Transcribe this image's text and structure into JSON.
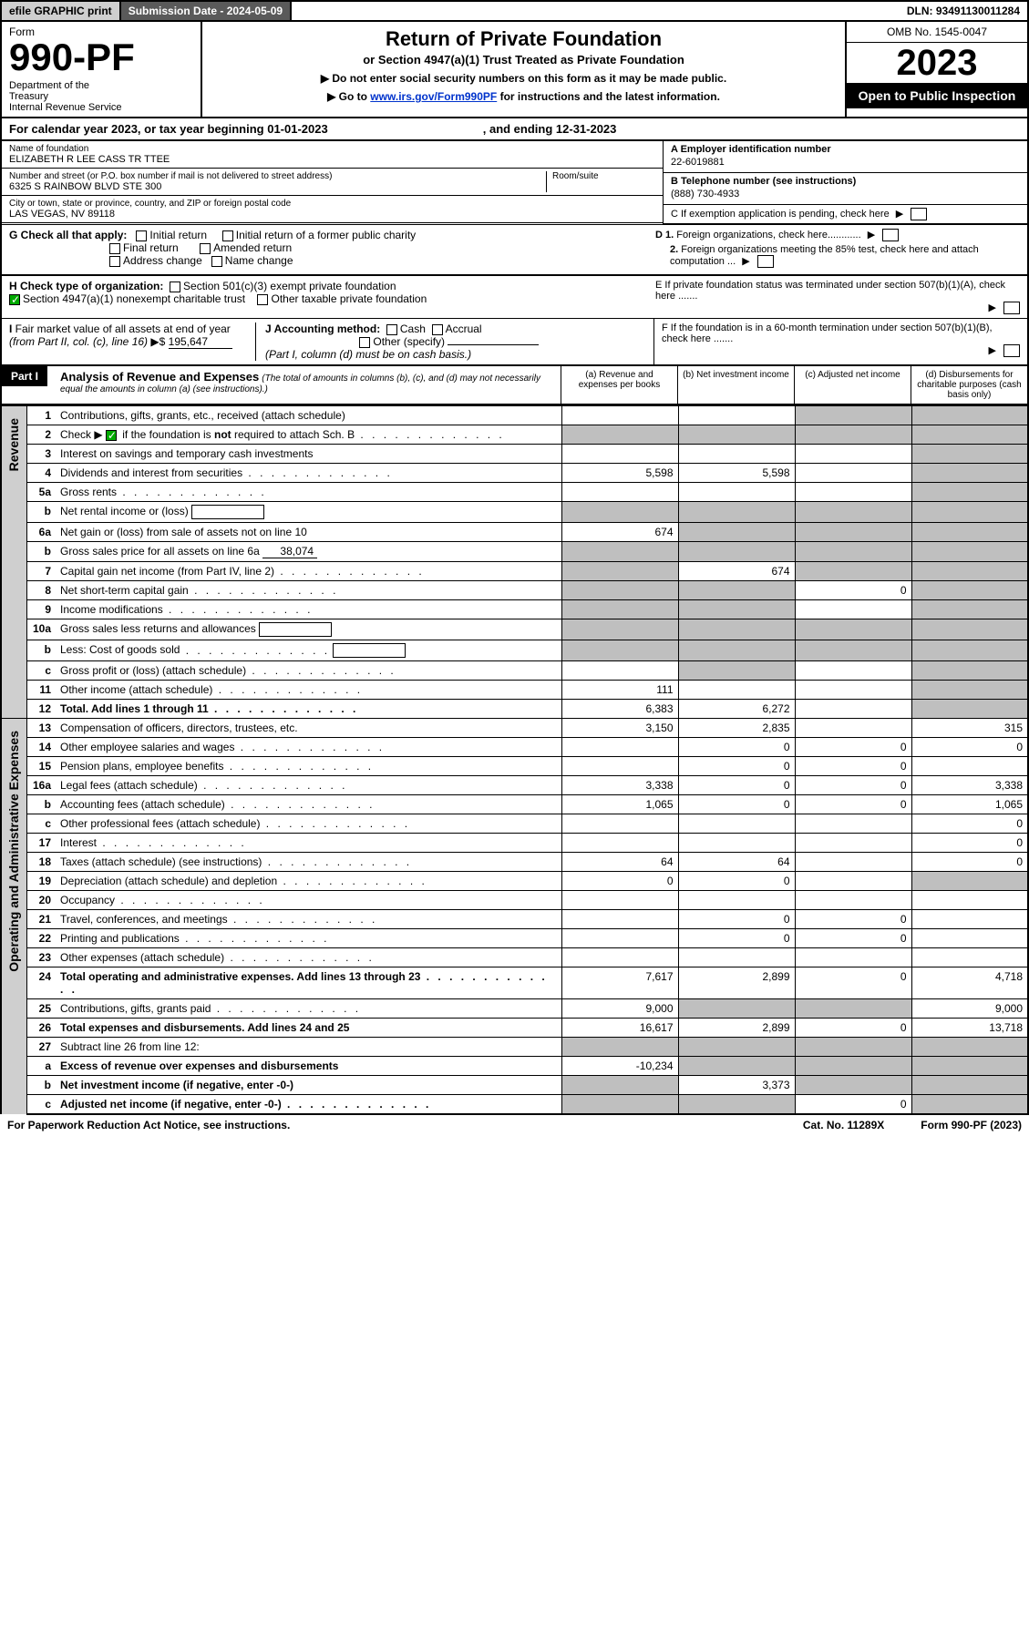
{
  "topbar": {
    "efile": "efile GRAPHIC print",
    "submission": "Submission Date - 2024-05-09",
    "dln": "DLN: 93491130011284"
  },
  "header": {
    "form_word": "Form",
    "form_num": "990-PF",
    "dept": "Department of the Treasury\nInternal Revenue Service",
    "title": "Return of Private Foundation",
    "subtitle": "or Section 4947(a)(1) Trust Treated as Private Foundation",
    "note1": "▶ Do not enter social security numbers on this form as it may be made public.",
    "note2_pre": "▶ Go to ",
    "note2_link": "www.irs.gov/Form990PF",
    "note2_post": " for instructions and the latest information.",
    "omb": "OMB No. 1545-0047",
    "year": "2023",
    "open": "Open to Public Inspection"
  },
  "calyear": {
    "text": "For calendar year 2023, or tax year beginning 01-01-2023",
    "ending": ", and ending 12-31-2023"
  },
  "info": {
    "name_label": "Name of foundation",
    "name": "ELIZABETH R LEE CASS TR TTEE",
    "addr_label": "Number and street (or P.O. box number if mail is not delivered to street address)",
    "addr": "6325 S RAINBOW BLVD STE 300",
    "room_label": "Room/suite",
    "city_label": "City or town, state or province, country, and ZIP or foreign postal code",
    "city": "LAS VEGAS, NV  89118",
    "a_label": "A Employer identification number",
    "ein": "22-6019881",
    "b_label": "B Telephone number (see instructions)",
    "phone": "(888) 730-4933",
    "c_label": "C If exemption application is pending, check here"
  },
  "g": {
    "label": "G Check all that apply:",
    "initial": "Initial return",
    "initial_former": "Initial return of a former public charity",
    "final": "Final return",
    "amended": "Amended return",
    "address": "Address change",
    "name_change": "Name change",
    "d1": "D 1. Foreign organizations, check here............",
    "d2": "2. Foreign organizations meeting the 85% test, check here and attach computation ...",
    "e": "E  If private foundation status was terminated under section 507(b)(1)(A), check here ......."
  },
  "h": {
    "label": "H Check type of organization:",
    "sec501": "Section 501(c)(3) exempt private foundation",
    "sec4947": "Section 4947(a)(1) nonexempt charitable trust",
    "other_taxable": "Other taxable private foundation"
  },
  "i": {
    "label": "I Fair market value of all assets at end of year (from Part II, col. (c), line 16)",
    "arrow": "▶$",
    "value": "195,647"
  },
  "j": {
    "label": "J Accounting method:",
    "cash": "Cash",
    "accrual": "Accrual",
    "other": "Other (specify)",
    "note": "(Part I, column (d) must be on cash basis.)"
  },
  "f": {
    "label": "F  If the foundation is in a 60-month termination under section 507(b)(1)(B), check here ......."
  },
  "part1": {
    "label": "Part I",
    "title": "Analysis of Revenue and Expenses",
    "subtitle": "(The total of amounts in columns (b), (c), and (d) may not necessarily equal the amounts in column (a) (see instructions).)",
    "col_a": "(a)   Revenue and expenses per books",
    "col_b": "(b)   Net investment income",
    "col_c": "(c)   Adjusted net income",
    "col_d": "(d)   Disbursements for charitable purposes (cash basis only)"
  },
  "vert": {
    "revenue": "Revenue",
    "expenses": "Operating and Administrative Expenses"
  },
  "rows": [
    {
      "n": "1",
      "desc": "Contributions, gifts, grants, etc., received (attach schedule)",
      "a": "",
      "b": "",
      "c": "g",
      "d": "g"
    },
    {
      "n": "2",
      "desc": "Check ▶ [x] if the foundation is not required to attach Sch. B",
      "dots": true,
      "a": "g",
      "b": "g",
      "c": "g",
      "d": "g",
      "checkbox": true
    },
    {
      "n": "3",
      "desc": "Interest on savings and temporary cash investments",
      "a": "",
      "b": "",
      "c": "",
      "d": "g"
    },
    {
      "n": "4",
      "desc": "Dividends and interest from securities",
      "dots": true,
      "a": "5,598",
      "b": "5,598",
      "c": "",
      "d": "g"
    },
    {
      "n": "5a",
      "desc": "Gross rents",
      "dots": true,
      "a": "",
      "b": "",
      "c": "",
      "d": "g"
    },
    {
      "n": "b",
      "desc": "Net rental income or (loss)",
      "box": true,
      "a": "g",
      "b": "g",
      "c": "g",
      "d": "g"
    },
    {
      "n": "6a",
      "desc": "Net gain or (loss) from sale of assets not on line 10",
      "a": "674",
      "b": "g",
      "c": "g",
      "d": "g"
    },
    {
      "n": "b",
      "desc": "Gross sales price for all assets on line 6a",
      "underline": "38,074",
      "a": "g",
      "b": "g",
      "c": "g",
      "d": "g"
    },
    {
      "n": "7",
      "desc": "Capital gain net income (from Part IV, line 2)",
      "dots": true,
      "a": "g",
      "b": "674",
      "c": "g",
      "d": "g"
    },
    {
      "n": "8",
      "desc": "Net short-term capital gain",
      "dots": true,
      "a": "g",
      "b": "g",
      "c": "0",
      "d": "g"
    },
    {
      "n": "9",
      "desc": "Income modifications",
      "dots": true,
      "a": "g",
      "b": "g",
      "c": "",
      "d": "g"
    },
    {
      "n": "10a",
      "desc": "Gross sales less returns and allowances",
      "box": true,
      "a": "g",
      "b": "g",
      "c": "g",
      "d": "g"
    },
    {
      "n": "b",
      "desc": "Less: Cost of goods sold",
      "dots": true,
      "box": true,
      "a": "g",
      "b": "g",
      "c": "g",
      "d": "g"
    },
    {
      "n": "c",
      "desc": "Gross profit or (loss) (attach schedule)",
      "dots": true,
      "a": "",
      "b": "g",
      "c": "",
      "d": "g"
    },
    {
      "n": "11",
      "desc": "Other income (attach schedule)",
      "dots": true,
      "a": "111",
      "b": "",
      "c": "",
      "d": "g"
    },
    {
      "n": "12",
      "desc": "Total. Add lines 1 through 11",
      "dots": true,
      "bold": true,
      "a": "6,383",
      "b": "6,272",
      "c": "",
      "d": "g"
    }
  ],
  "exp_rows": [
    {
      "n": "13",
      "desc": "Compensation of officers, directors, trustees, etc.",
      "a": "3,150",
      "b": "2,835",
      "c": "",
      "d": "315"
    },
    {
      "n": "14",
      "desc": "Other employee salaries and wages",
      "dots": true,
      "a": "",
      "b": "0",
      "c": "0",
      "d": "0"
    },
    {
      "n": "15",
      "desc": "Pension plans, employee benefits",
      "dots": true,
      "a": "",
      "b": "0",
      "c": "0",
      "d": ""
    },
    {
      "n": "16a",
      "desc": "Legal fees (attach schedule)",
      "dots": true,
      "a": "3,338",
      "b": "0",
      "c": "0",
      "d": "3,338"
    },
    {
      "n": "b",
      "desc": "Accounting fees (attach schedule)",
      "dots": true,
      "a": "1,065",
      "b": "0",
      "c": "0",
      "d": "1,065"
    },
    {
      "n": "c",
      "desc": "Other professional fees (attach schedule)",
      "dots": true,
      "a": "",
      "b": "",
      "c": "",
      "d": "0"
    },
    {
      "n": "17",
      "desc": "Interest",
      "dots": true,
      "a": "",
      "b": "",
      "c": "",
      "d": "0"
    },
    {
      "n": "18",
      "desc": "Taxes (attach schedule) (see instructions)",
      "dots": true,
      "a": "64",
      "b": "64",
      "c": "",
      "d": "0"
    },
    {
      "n": "19",
      "desc": "Depreciation (attach schedule) and depletion",
      "dots": true,
      "a": "0",
      "b": "0",
      "c": "",
      "d": "g"
    },
    {
      "n": "20",
      "desc": "Occupancy",
      "dots": true,
      "a": "",
      "b": "",
      "c": "",
      "d": ""
    },
    {
      "n": "21",
      "desc": "Travel, conferences, and meetings",
      "dots": true,
      "a": "",
      "b": "0",
      "c": "0",
      "d": ""
    },
    {
      "n": "22",
      "desc": "Printing and publications",
      "dots": true,
      "a": "",
      "b": "0",
      "c": "0",
      "d": ""
    },
    {
      "n": "23",
      "desc": "Other expenses (attach schedule)",
      "dots": true,
      "a": "",
      "b": "",
      "c": "",
      "d": ""
    },
    {
      "n": "24",
      "desc": "Total operating and administrative expenses. Add lines 13 through 23",
      "dots": true,
      "bold": true,
      "a": "7,617",
      "b": "2,899",
      "c": "0",
      "d": "4,718"
    },
    {
      "n": "25",
      "desc": "Contributions, gifts, grants paid",
      "dots": true,
      "a": "9,000",
      "b": "g",
      "c": "g",
      "d": "9,000"
    },
    {
      "n": "26",
      "desc": "Total expenses and disbursements. Add lines 24 and 25",
      "bold": true,
      "a": "16,617",
      "b": "2,899",
      "c": "0",
      "d": "13,718"
    },
    {
      "n": "27",
      "desc": "Subtract line 26 from line 12:",
      "a": "g",
      "b": "g",
      "c": "g",
      "d": "g"
    },
    {
      "n": "a",
      "desc": "Excess of revenue over expenses and disbursements",
      "bold": true,
      "a": "-10,234",
      "b": "g",
      "c": "g",
      "d": "g"
    },
    {
      "n": "b",
      "desc": "Net investment income (if negative, enter -0-)",
      "bold": true,
      "a": "g",
      "b": "3,373",
      "c": "g",
      "d": "g"
    },
    {
      "n": "c",
      "desc": "Adjusted net income (if negative, enter -0-)",
      "dots": true,
      "bold": true,
      "a": "g",
      "b": "g",
      "c": "0",
      "d": "g"
    }
  ],
  "footer": {
    "left": "For Paperwork Reduction Act Notice, see instructions.",
    "mid": "Cat. No. 11289X",
    "right": "Form 990-PF (2023)"
  },
  "colors": {
    "black": "#000000",
    "grey_btn": "#cfcfcf",
    "dark_grey": "#5a5a5a",
    "cell_grey": "#bfbfbf",
    "link": "#0033cc",
    "check_green": "#00aa00"
  }
}
